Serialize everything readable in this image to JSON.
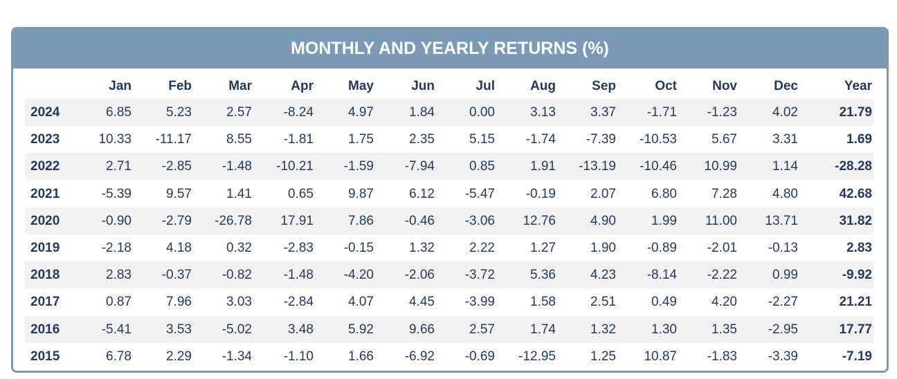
{
  "table": {
    "title": "MONTHLY AND YEARLY RETURNS (%)",
    "columns": [
      "Jan",
      "Feb",
      "Mar",
      "Apr",
      "May",
      "Jun",
      "Jul",
      "Aug",
      "Sep",
      "Oct",
      "Nov",
      "Dec",
      "Year"
    ],
    "rows": [
      [
        "2024",
        "6.85",
        "5.23",
        "2.57",
        "-8.24",
        "4.97",
        "1.84",
        "0.00",
        "3.13",
        "3.37",
        "-1.71",
        "-1.23",
        "4.02",
        "21.79"
      ],
      [
        "2023",
        "10.33",
        "-11.17",
        "8.55",
        "-1.81",
        "1.75",
        "2.35",
        "5.15",
        "-1.74",
        "-7.39",
        "-10.53",
        "5.67",
        "3.31",
        "1.69"
      ],
      [
        "2022",
        "2.71",
        "-2.85",
        "-1.48",
        "-10.21",
        "-1.59",
        "-7.94",
        "0.85",
        "1.91",
        "-13.19",
        "-10.46",
        "10.99",
        "1.14",
        "-28.28"
      ],
      [
        "2021",
        "-5.39",
        "9.57",
        "1.41",
        "0.65",
        "9.87",
        "6.12",
        "-5.47",
        "-0.19",
        "2.07",
        "6.80",
        "7.28",
        "4.80",
        "42.68"
      ],
      [
        "2020",
        "-0.90",
        "-2.79",
        "-26.78",
        "17.91",
        "7.86",
        "-0.46",
        "-3.06",
        "12.76",
        "4.90",
        "1.99",
        "11.00",
        "13.71",
        "31.82"
      ],
      [
        "2019",
        "-2.18",
        "4.18",
        "0.32",
        "-2.83",
        "-0.15",
        "1.32",
        "2.22",
        "1.27",
        "1.90",
        "-0.89",
        "-2.01",
        "-0.13",
        "2.83"
      ],
      [
        "2018",
        "2.83",
        "-0.37",
        "-0.82",
        "-1.48",
        "-4.20",
        "-2.06",
        "-3.72",
        "5.36",
        "4.23",
        "-8.14",
        "-2.22",
        "0.99",
        "-9.92"
      ],
      [
        "2017",
        "0.87",
        "7.96",
        "3.03",
        "-2.84",
        "4.07",
        "4.45",
        "-3.99",
        "1.58",
        "2.51",
        "0.49",
        "4.20",
        "-2.27",
        "21.21"
      ],
      [
        "2016",
        "-5.41",
        "3.53",
        "-5.02",
        "3.48",
        "5.92",
        "9.66",
        "2.57",
        "1.74",
        "1.32",
        "1.30",
        "1.35",
        "-2.95",
        "17.77"
      ],
      [
        "2015",
        "6.78",
        "2.29",
        "-1.34",
        "-1.10",
        "1.66",
        "-6.92",
        "-0.69",
        "-12.95",
        "1.25",
        "10.87",
        "-1.83",
        "-3.39",
        "-7.19"
      ]
    ]
  }
}
